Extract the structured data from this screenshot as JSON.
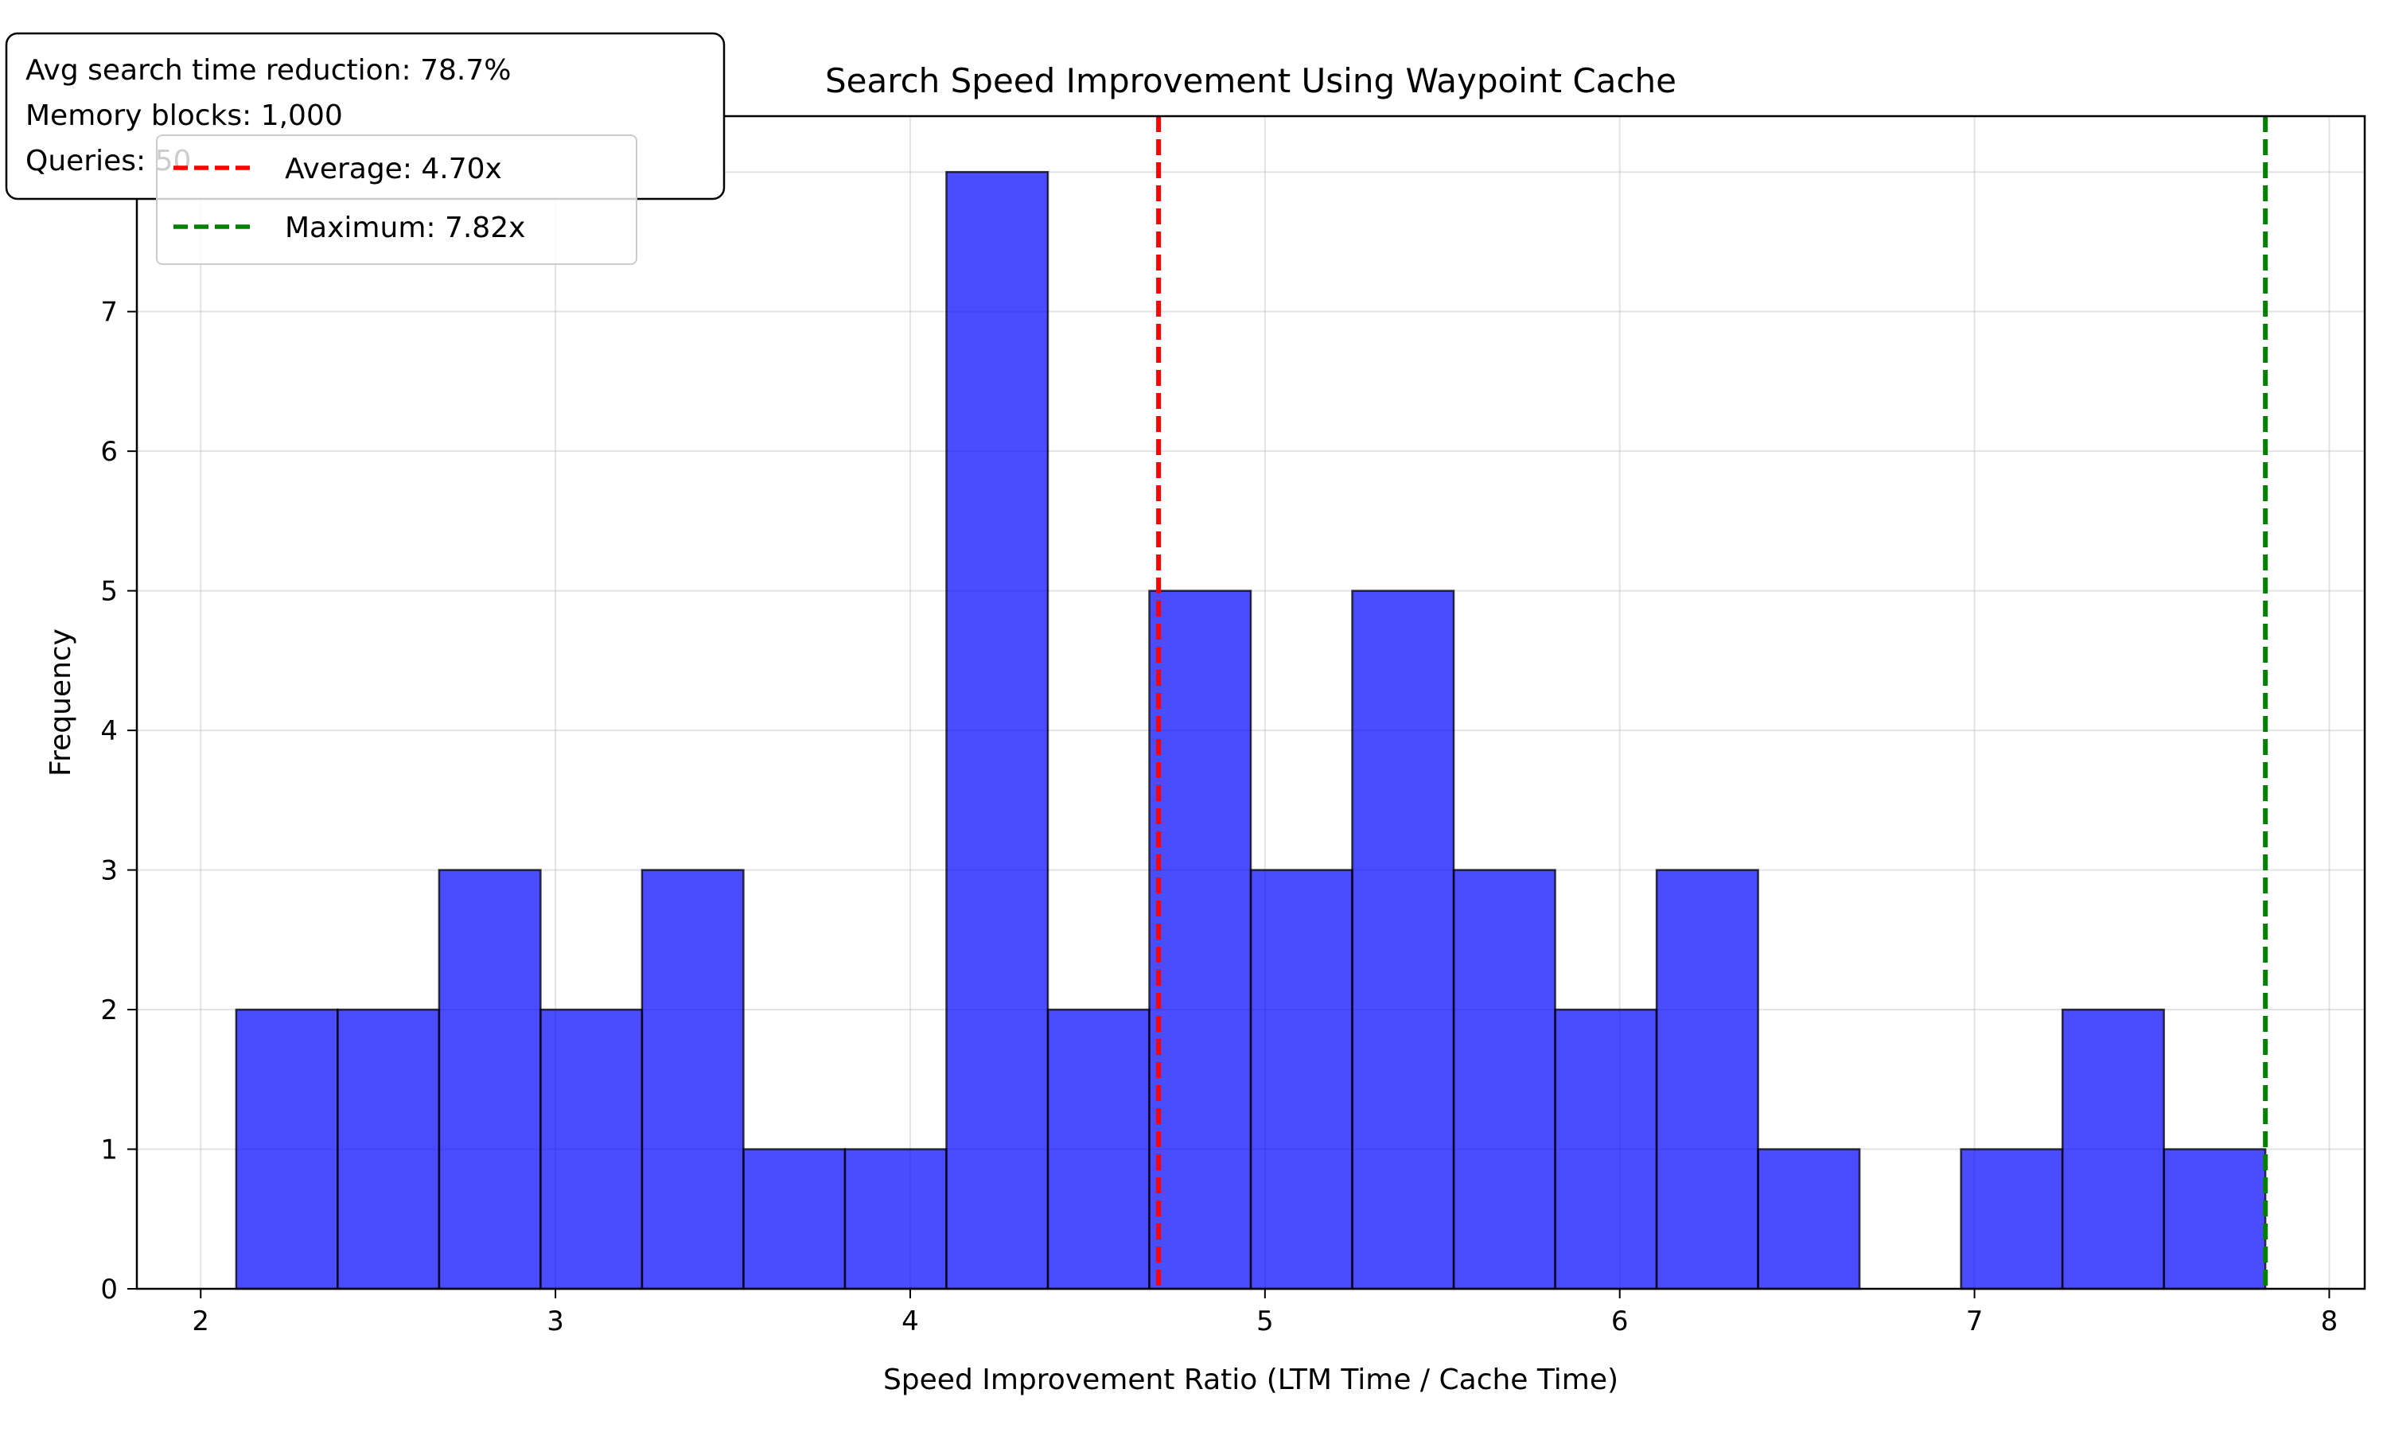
{
  "chart_data": {
    "type": "bar",
    "title": "Search Speed Improvement Using Waypoint Cache",
    "xlabel": "Speed Improvement Ratio (LTM Time / Cache Time)",
    "ylabel": "Frequency",
    "xlim": [
      1.82,
      8.1
    ],
    "ylim": [
      0,
      8.4
    ],
    "x_ticks": [
      2,
      3,
      4,
      5,
      6,
      7,
      8
    ],
    "y_ticks": [
      0,
      1,
      2,
      3,
      4,
      5,
      6,
      7,
      8
    ],
    "bin_start": 2.1,
    "bin_width": 0.286,
    "values": [
      2,
      2,
      3,
      2,
      3,
      1,
      1,
      8,
      2,
      5,
      3,
      5,
      3,
      2,
      3,
      1,
      0,
      1,
      2,
      1
    ],
    "bar_color": "#0000ff",
    "bar_opacity": 0.7,
    "grid": true,
    "reference_lines": [
      {
        "label": "Average: 4.70x",
        "x": 4.7,
        "color": "#ff0000"
      },
      {
        "label": "Maximum: 7.82x",
        "x": 7.82,
        "color": "#008000"
      }
    ],
    "legend_position": "upper-left",
    "annotation": {
      "lines": [
        "Avg search time reduction: 78.7%",
        "Memory blocks: 1,000",
        "Queries: 50"
      ]
    }
  }
}
